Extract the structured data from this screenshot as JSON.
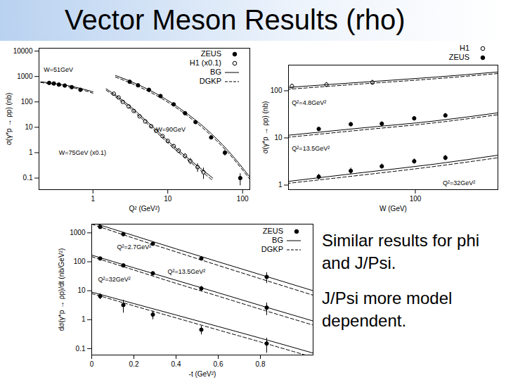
{
  "title": "Vector Meson Results (rho)",
  "notes": [
    "Similar results for phi and J/Psi.",
    "J/Psi more model dependent."
  ],
  "chart_data": [
    {
      "type": "scatter",
      "log": true,
      "x_label": "Q² (GeV²)",
      "y_label": "σ(γ*p → ρp) (nb)",
      "xlim": [
        0.19,
        125
      ],
      "ylim": [
        0.035,
        13000
      ],
      "xticks": [
        1,
        10,
        100
      ],
      "yticks": [
        0.1,
        1,
        10,
        100,
        1000,
        10000
      ],
      "legend": "top-right",
      "series": [
        {
          "name": "ZEUS",
          "type": "scatter",
          "marker": "filled",
          "color": "#000000",
          "sets": [
            {
              "x": [
                0.26,
                0.3,
                0.35,
                0.42,
                0.52,
                0.68
              ],
              "values": [
                560,
                530,
                480,
                440,
                380,
                300
              ],
              "errors": [
                40,
                35,
                30,
                30,
                30,
                30
              ]
            },
            {
              "x": [
                3.1,
                4,
                5.6,
                8,
                12,
                17,
                23.5,
                38,
                58,
                93
              ],
              "values": [
                620,
                450,
                300,
                170,
                80,
                36,
                16,
                4.0,
                1.0,
                0.1
              ],
              "errors": [
                60,
                45,
                30,
                17,
                8,
                4,
                2,
                0.6,
                0.25,
                0.05
              ]
            }
          ]
        },
        {
          "name": "H1 (x0.1)",
          "type": "scatter",
          "marker": "open",
          "color": "#000000",
          "sets": [
            {
              "x": [
                1.9,
                2.2,
                2.5,
                3.0,
                3.5,
                4.2,
                5.0,
                6.0,
                7.0,
                8.5,
                10,
                12,
                14,
                17,
                20,
                25,
                30
              ],
              "values": [
                210,
                150,
                100,
                66,
                44,
                27,
                17,
                11,
                7.2,
                4.5,
                2.9,
                1.8,
                1.2,
                0.75,
                0.47,
                0.27,
                0.17
              ],
              "errors": [
                25,
                18,
                12,
                8,
                5,
                3.5,
                2.2,
                1.5,
                1,
                0.7,
                0.5,
                0.35,
                0.25,
                0.18,
                0.13,
                0.1,
                0.08
              ]
            }
          ]
        },
        {
          "name": "BG",
          "type": "line",
          "line_style": "solid",
          "color": "#000000",
          "sets": [
            {
              "x": [
                0.2,
                0.3,
                0.5,
                0.8,
                1.0
              ],
              "values": [
                620,
                530,
                420,
                300,
                250
              ]
            },
            {
              "x": [
                1.5,
                3,
                6,
                12,
                25,
                40
              ],
              "values": [
                330,
                75,
                12,
                1.8,
                0.3,
                0.1
              ]
            },
            {
              "x": [
                2,
                4,
                8,
                16,
                32,
                64,
                125
              ],
              "values": [
                1100,
                480,
                170,
                45,
                9,
                1.2,
                0.11
              ]
            }
          ]
        },
        {
          "name": "DGKP",
          "type": "line",
          "line_style": "dashed",
          "color": "#000000",
          "sets": [
            {
              "x": [
                0.2,
                0.3,
                0.5,
                0.8,
                1.0
              ],
              "values": [
                580,
                490,
                380,
                270,
                220
              ]
            },
            {
              "x": [
                1.5,
                3,
                6,
                12,
                25,
                40
              ],
              "values": [
                290,
                63,
                10,
                1.5,
                0.25,
                0.08
              ]
            },
            {
              "x": [
                2,
                4,
                8,
                16,
                32,
                64,
                125
              ],
              "values": [
                950,
                410,
                145,
                38,
                7.5,
                1.0,
                0.09
              ]
            }
          ]
        }
      ],
      "annotations": [
        {
          "text": "W=51GeV",
          "x": 0.22,
          "y": 1800
        },
        {
          "text": "W=90GeV",
          "x": 7,
          "y": 8
        },
        {
          "text": "W=75GeV (x0.1)",
          "x": 0.35,
          "y": 1
        }
      ]
    },
    {
      "type": "scatter",
      "log": true,
      "x_label": "W (GeV)",
      "y_label": "σ(γ*p → ρp) (nb)",
      "xlim": [
        32,
        210
      ],
      "ylim": [
        0.8,
        350
      ],
      "xticks": [
        100
      ],
      "yticks": [
        1,
        10,
        100
      ],
      "legend": "top-right",
      "series": [
        {
          "name": "H1",
          "type": "scatter",
          "marker": "open",
          "color": "#000000",
          "sets": [
            {
              "x": [
                33,
                45,
                68
              ],
              "values": [
                125,
                135,
                150
              ],
              "errors": [
                15,
                15,
                18
              ]
            }
          ]
        },
        {
          "name": "ZEUS",
          "type": "scatter",
          "marker": "filled",
          "color": "#000000",
          "sets": [
            {
              "x": [
                42,
                56,
                74,
                99,
                131
              ],
              "values": [
                15.5,
                19.5,
                20,
                26,
                30
              ],
              "errors": [
                1.5,
                2,
                2,
                2.5,
                3
              ]
            },
            {
              "x": [
                42,
                56,
                74,
                99,
                131
              ],
              "values": [
                1.5,
                2.0,
                2.5,
                3.2,
                3.8
              ],
              "errors": [
                0.2,
                0.3,
                0.3,
                0.4,
                0.5
              ]
            }
          ]
        },
        {
          "type": "line",
          "line_style": "solid",
          "color": "#000000",
          "sets": [
            {
              "x": [
                30,
                60,
                120,
                210
              ],
              "values": [
                115,
                150,
                195,
                250
              ]
            },
            {
              "x": [
                30,
                60,
                120,
                210
              ],
              "values": [
                11,
                16,
                23,
                34
              ]
            },
            {
              "x": [
                30,
                60,
                120,
                210
              ],
              "values": [
                1.15,
                1.8,
                2.8,
                4.3
              ]
            }
          ]
        },
        {
          "type": "line",
          "line_style": "dashed",
          "color": "#000000",
          "sets": [
            {
              "x": [
                30,
                60,
                120,
                210
              ],
              "values": [
                105,
                138,
                180,
                232
              ]
            },
            {
              "x": [
                30,
                60,
                120,
                210
              ],
              "values": [
                10,
                14.5,
                21,
                31
              ]
            },
            {
              "x": [
                30,
                60,
                120,
                210
              ],
              "values": [
                1.05,
                1.6,
                2.5,
                3.8
              ]
            }
          ]
        }
      ],
      "annotations": [
        {
          "text": "Q²=4.8GeV²",
          "x": 33,
          "y": 55
        },
        {
          "text": "Q²=13.5GeV²",
          "x": 33,
          "y": 6
        },
        {
          "text": "Q²=32GeV²",
          "x": 128,
          "y": 1.12
        }
      ]
    },
    {
      "type": "scatter",
      "log": "y",
      "x_label": "-t (GeV²)",
      "y_label": "dσ(γ*p → ρp)/dt (nb/GeV²)",
      "xlim": [
        0,
        1.05
      ],
      "ylim": [
        0.06,
        2000
      ],
      "xticks": [
        0,
        0.2,
        0.4,
        0.6,
        0.8
      ],
      "yticks": [
        0.1,
        1,
        10,
        100,
        1000
      ],
      "legend": "top-right",
      "series": [
        {
          "name": "ZEUS",
          "type": "scatter",
          "marker": "filled",
          "color": "#000000",
          "sets": [
            {
              "x": [
                0.04,
                0.15,
                0.29,
                0.52,
                0.83
              ],
              "values": [
                1600,
                900,
                420,
                130,
                30
              ],
              "errors": [
                150,
                90,
                50,
                20,
                12
              ]
            },
            {
              "x": [
                0.04,
                0.15,
                0.29,
                0.52,
                0.83
              ],
              "values": [
                130,
                75,
                40,
                12,
                2.6
              ],
              "errors": [
                12,
                8,
                5,
                2,
                1.2
              ]
            },
            {
              "x": [
                0.04,
                0.15,
                0.29,
                0.52,
                0.83
              ],
              "values": [
                6.5,
                3.2,
                1.5,
                0.45,
                0.15
              ],
              "errors": [
                1.5,
                1.5,
                0.5,
                0.15,
                0.08
              ]
            }
          ]
        },
        {
          "name": "BG",
          "type": "line",
          "line_style": "solid",
          "color": "#000000",
          "sets": [
            {
              "x": [
                0,
                0.2,
                0.4,
                0.6,
                0.8,
                1.05
              ],
              "values": [
                2300,
                800,
                280,
                100,
                36,
                10
              ]
            },
            {
              "x": [
                0,
                0.2,
                0.4,
                0.6,
                0.8,
                1.05
              ],
              "values": [
                170,
                62,
                23,
                8.5,
                3.1,
                0.9
              ]
            },
            {
              "x": [
                0,
                0.2,
                0.4,
                0.6,
                0.8,
                1.05
              ],
              "values": [
                9,
                3.6,
                1.45,
                0.58,
                0.23,
                0.07
              ]
            }
          ]
        },
        {
          "name": "DGKP",
          "type": "line",
          "line_style": "dashed",
          "color": "#000000",
          "sets": [
            {
              "x": [
                0,
                0.2,
                0.4,
                0.6,
                0.8,
                1.05
              ],
              "values": [
                2000,
                650,
                220,
                75,
                26,
                7
              ]
            },
            {
              "x": [
                0,
                0.2,
                0.4,
                0.6,
                0.8,
                1.05
              ],
              "values": [
                150,
                52,
                18,
                6.5,
                2.3,
                0.65
              ]
            },
            {
              "x": [
                0,
                0.2,
                0.4,
                0.6,
                0.8,
                1.05
              ],
              "values": [
                8,
                3.0,
                1.15,
                0.44,
                0.17,
                0.05
              ]
            }
          ]
        }
      ],
      "annotations": [
        {
          "text": "Q²=2.7GeV²",
          "x": 0.12,
          "y": 330
        },
        {
          "text": "Q²=13.5GeV²",
          "x": 0.36,
          "y": 45
        },
        {
          "text": "Q²=32GeV²",
          "x": 0.03,
          "y": 24
        }
      ]
    }
  ]
}
